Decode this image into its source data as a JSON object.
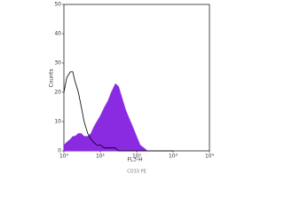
{
  "chart_data": {
    "type": "area",
    "x_label": "FL3-H",
    "y_label": "Counts",
    "caption": "CD33 PE",
    "x": [
      1,
      1.2,
      1.5,
      1.75,
      2,
      2.5,
      3,
      3.6,
      4.5,
      5.5,
      6.5,
      8,
      10,
      13,
      16,
      20,
      26,
      32,
      40,
      50,
      63,
      80,
      100,
      125,
      160,
      200,
      300,
      1000
    ],
    "series": [
      {
        "color": "#8a2be2",
        "fill": true,
        "values": [
          2,
          3,
          4,
          5,
          5,
          6,
          6,
          5,
          5,
          6,
          8,
          10,
          12,
          15,
          17,
          20,
          23,
          22,
          18,
          14,
          11,
          8,
          5,
          2,
          1,
          0,
          0,
          0
        ]
      },
      {
        "color": "#000000",
        "fill": false,
        "values": [
          20,
          25,
          27,
          27,
          24,
          20,
          15,
          10,
          6,
          4,
          3,
          2,
          2,
          1,
          1,
          1,
          1,
          0,
          0,
          0,
          0,
          0,
          0,
          0,
          0,
          0,
          0,
          0
        ]
      }
    ],
    "xscale": "log",
    "xlim": [
      1,
      10000
    ],
    "xticks": [
      {
        "value": 1,
        "label": "10⁰"
      },
      {
        "value": 10,
        "label": "10¹"
      },
      {
        "value": 100,
        "label": "10²"
      },
      {
        "value": 1000,
        "label": "10³"
      },
      {
        "value": 10000,
        "label": "10⁴"
      }
    ],
    "ylim": [
      0,
      50
    ],
    "yticks": [
      0,
      10,
      20,
      30,
      40,
      50
    ]
  }
}
